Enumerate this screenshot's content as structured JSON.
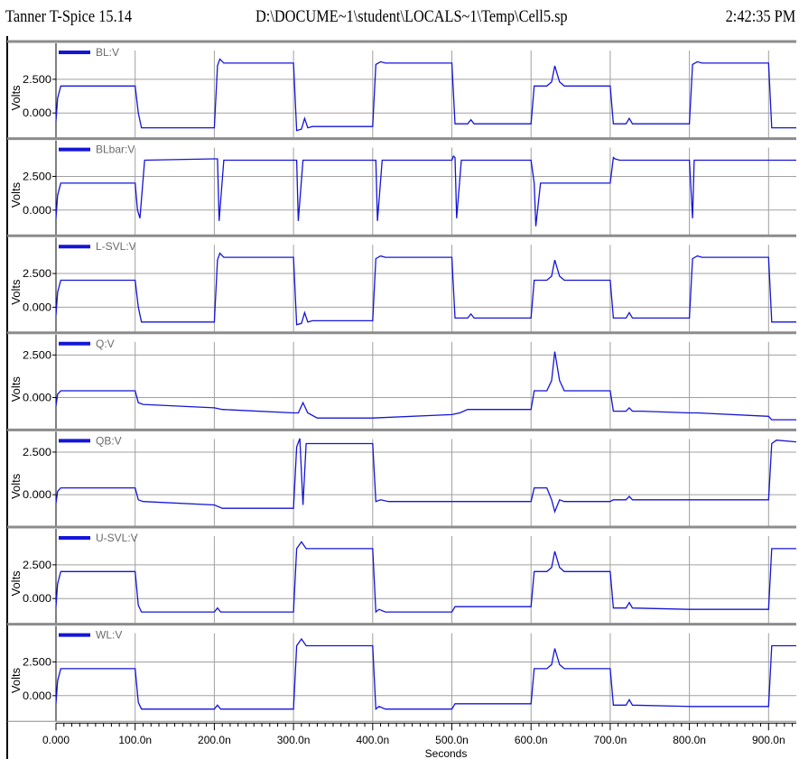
{
  "header": {
    "app_title": "Tanner T-Spice 15.14",
    "file_path": "D:\\DOCUME~1\\student\\LOCALS~1\\Temp\\Cell5.sp",
    "time": "2:42:35 PM"
  },
  "colors": {
    "trace": "#1515d8",
    "grid": "#a0a0a0",
    "divider": "#8c8c8c",
    "label": "#6a6a6a"
  },
  "chart_data": {
    "type": "line",
    "xlabel": "Seconds",
    "x_ticks": [
      "0.000",
      "100.0n",
      "200.0n",
      "300.0n",
      "400.0n",
      "500.0n",
      "600.0n",
      "700.0n",
      "800.0n",
      "900.0n"
    ],
    "xlim": [
      0,
      935
    ],
    "x_unit": "ns",
    "ylabel": "Volts",
    "panels": [
      {
        "name": "BL:V",
        "y_ticks": [
          "2.500",
          "0.000"
        ],
        "y_tick_values": [
          2.5,
          0
        ],
        "ylim": [
          -1.9,
          5.3
        ],
        "x": [
          0,
          2,
          6,
          100,
          104,
          108,
          120,
          200,
          204,
          207,
          212,
          300,
          304,
          310,
          314,
          318,
          324,
          400,
          404,
          410,
          416,
          500,
          504,
          520,
          524,
          528,
          540,
          600,
          604,
          620,
          626,
          630,
          636,
          642,
          700,
          704,
          720,
          724,
          728,
          740,
          800,
          804,
          810,
          816,
          900,
          904,
          935
        ],
        "values": [
          -0.6,
          1.1,
          2.0,
          2.0,
          0.0,
          -1.1,
          -1.1,
          -1.1,
          3.5,
          4.0,
          3.7,
          3.7,
          -1.3,
          -1.2,
          -0.4,
          -1.1,
          -1.0,
          -1.0,
          3.6,
          3.8,
          3.7,
          3.7,
          -0.8,
          -0.8,
          -0.5,
          -0.8,
          -0.8,
          -0.8,
          2.0,
          2.0,
          2.3,
          3.5,
          2.3,
          2.0,
          2.0,
          -0.8,
          -0.8,
          -0.4,
          -0.8,
          -0.8,
          -0.8,
          3.6,
          3.8,
          3.7,
          3.7,
          -1.1,
          -1.1
        ]
      },
      {
        "name": "BLbar:V",
        "y_ticks": [
          "2.500",
          "0.000"
        ],
        "y_tick_values": [
          2.5,
          0
        ],
        "ylim": [
          -1.9,
          5.3
        ],
        "x": [
          0,
          2,
          6,
          100,
          103,
          106,
          112,
          200,
          204,
          206,
          212,
          300,
          304,
          306,
          312,
          400,
          404,
          406,
          412,
          500,
          502,
          504,
          506,
          512,
          600,
          604,
          606,
          612,
          700,
          704,
          706,
          712,
          800,
          804,
          806,
          812,
          900,
          935
        ],
        "values": [
          -0.6,
          1.1,
          2.0,
          2.0,
          0.0,
          -0.6,
          3.7,
          3.8,
          3.8,
          -0.8,
          3.7,
          3.7,
          3.7,
          -0.8,
          3.7,
          3.7,
          3.7,
          -0.8,
          3.7,
          3.7,
          4.0,
          3.9,
          -0.6,
          3.7,
          3.7,
          2.0,
          -1.2,
          2.0,
          2.0,
          3.9,
          3.8,
          3.7,
          3.7,
          -0.6,
          3.7,
          3.7,
          3.7,
          3.7
        ]
      },
      {
        "name": "L-SVL:V",
        "y_ticks": [
          "2.500",
          "0.000"
        ],
        "y_tick_values": [
          2.5,
          0
        ],
        "ylim": [
          -1.9,
          5.3
        ],
        "x": [
          0,
          2,
          6,
          100,
          104,
          108,
          120,
          200,
          204,
          207,
          212,
          300,
          304,
          310,
          314,
          318,
          324,
          400,
          404,
          410,
          416,
          500,
          504,
          520,
          524,
          528,
          540,
          600,
          604,
          620,
          626,
          630,
          636,
          642,
          700,
          704,
          720,
          724,
          728,
          740,
          800,
          804,
          810,
          816,
          900,
          904,
          935
        ],
        "values": [
          -0.6,
          1.1,
          2.0,
          2.0,
          0.0,
          -1.1,
          -1.1,
          -1.1,
          3.5,
          4.0,
          3.7,
          3.7,
          -1.3,
          -1.2,
          -0.4,
          -1.1,
          -1.0,
          -1.0,
          3.6,
          3.8,
          3.7,
          3.7,
          -0.8,
          -0.8,
          -0.5,
          -0.8,
          -0.8,
          -0.8,
          2.0,
          2.0,
          2.3,
          3.5,
          2.3,
          2.0,
          2.0,
          -0.8,
          -0.8,
          -0.4,
          -0.8,
          -0.8,
          -0.8,
          3.6,
          3.8,
          3.7,
          3.7,
          -1.1,
          -1.1
        ]
      },
      {
        "name": "Q:V",
        "y_ticks": [
          "2.500",
          "0.000"
        ],
        "y_tick_values": [
          2.5,
          0
        ],
        "ylim": [
          -1.9,
          3.8
        ],
        "x": [
          0,
          2,
          6,
          100,
          104,
          110,
          200,
          210,
          300,
          306,
          312,
          318,
          330,
          400,
          500,
          510,
          520,
          600,
          604,
          620,
          626,
          630,
          636,
          642,
          700,
          704,
          720,
          724,
          728,
          740,
          800,
          810,
          900,
          904,
          935
        ],
        "values": [
          -0.5,
          0.2,
          0.4,
          0.4,
          -0.3,
          -0.4,
          -0.6,
          -0.7,
          -0.9,
          -0.9,
          -0.3,
          -0.9,
          -1.2,
          -1.2,
          -1.0,
          -0.9,
          -0.7,
          -0.7,
          0.4,
          0.4,
          1.0,
          2.7,
          1.0,
          0.4,
          0.4,
          -0.8,
          -0.8,
          -0.6,
          -0.8,
          -0.8,
          -0.9,
          -0.9,
          -1.1,
          -1.3,
          -1.3
        ]
      },
      {
        "name": "QB:V",
        "y_ticks": [
          "2.500",
          "0.000"
        ],
        "y_tick_values": [
          2.5,
          0
        ],
        "ylim": [
          -1.9,
          3.8
        ],
        "x": [
          0,
          2,
          6,
          100,
          104,
          110,
          200,
          210,
          300,
          304,
          308,
          312,
          316,
          320,
          400,
          404,
          410,
          420,
          500,
          600,
          604,
          620,
          626,
          630,
          636,
          642,
          700,
          704,
          720,
          724,
          728,
          740,
          800,
          900,
          904,
          910,
          935
        ],
        "values": [
          -0.5,
          0.2,
          0.4,
          0.4,
          -0.3,
          -0.4,
          -0.6,
          -0.8,
          -0.8,
          2.8,
          3.3,
          -0.6,
          3.0,
          3.0,
          3.0,
          -0.4,
          -0.3,
          -0.4,
          -0.4,
          -0.4,
          0.4,
          0.4,
          -0.3,
          -1.0,
          -0.3,
          -0.4,
          -0.4,
          -0.3,
          -0.3,
          -0.1,
          -0.3,
          -0.3,
          -0.3,
          -0.3,
          3.0,
          3.2,
          3.1
        ]
      },
      {
        "name": "U-SVL:V",
        "y_ticks": [
          "2.500",
          "0.000"
        ],
        "y_tick_values": [
          2.5,
          0
        ],
        "ylim": [
          -1.9,
          5.3
        ],
        "x": [
          0,
          2,
          6,
          100,
          104,
          108,
          200,
          204,
          208,
          300,
          304,
          310,
          316,
          400,
          404,
          408,
          416,
          500,
          504,
          520,
          600,
          604,
          620,
          626,
          630,
          636,
          642,
          700,
          704,
          720,
          724,
          728,
          800,
          900,
          904,
          935
        ],
        "values": [
          -0.6,
          1.1,
          2.0,
          2.0,
          -0.5,
          -1.0,
          -1.0,
          -0.7,
          -1.0,
          -1.0,
          3.7,
          4.2,
          3.7,
          3.7,
          -1.0,
          -0.8,
          -1.0,
          -1.0,
          -0.6,
          -0.6,
          -0.6,
          2.0,
          2.0,
          2.3,
          3.5,
          2.3,
          2.0,
          2.0,
          -0.7,
          -0.7,
          -0.3,
          -0.7,
          -0.8,
          -0.8,
          3.7,
          3.7
        ]
      },
      {
        "name": "WL:V",
        "y_ticks": [
          "2.500",
          "0.000"
        ],
        "y_tick_values": [
          2.5,
          0
        ],
        "ylim": [
          -1.9,
          5.3
        ],
        "x": [
          0,
          2,
          6,
          100,
          104,
          108,
          200,
          204,
          208,
          300,
          304,
          310,
          316,
          400,
          404,
          408,
          416,
          500,
          504,
          520,
          600,
          604,
          620,
          626,
          630,
          636,
          642,
          700,
          704,
          720,
          724,
          728,
          800,
          900,
          904,
          935
        ],
        "values": [
          -0.6,
          1.1,
          2.0,
          2.0,
          -0.5,
          -1.0,
          -1.0,
          -0.7,
          -1.0,
          -1.0,
          3.7,
          4.2,
          3.7,
          3.7,
          -1.0,
          -0.8,
          -1.0,
          -1.0,
          -0.6,
          -0.6,
          -0.6,
          2.0,
          2.0,
          2.3,
          3.5,
          2.3,
          2.0,
          2.0,
          -0.7,
          -0.7,
          -0.3,
          -0.7,
          -0.8,
          -0.8,
          3.7,
          3.7
        ]
      }
    ]
  }
}
